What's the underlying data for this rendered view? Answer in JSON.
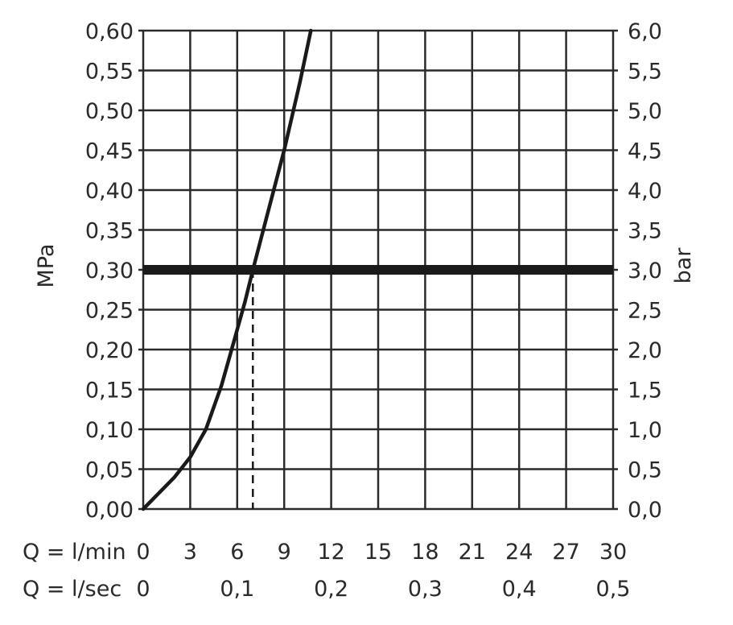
{
  "chart_data": {
    "type": "line",
    "y_left_label": "MPa",
    "y_right_label": "bar",
    "x_row1_label": "Q = l/min",
    "x_row2_label": "Q = l/sec",
    "x_row1_ticks": [
      "0",
      "3",
      "6",
      "9",
      "12",
      "15",
      "18",
      "21",
      "24",
      "27",
      "30"
    ],
    "x_row2_ticks": [
      {
        "q": 0,
        "label": "0"
      },
      {
        "q": 6,
        "label": "0,1"
      },
      {
        "q": 12,
        "label": "0,2"
      },
      {
        "q": 18,
        "label": "0,3"
      },
      {
        "q": 24,
        "label": "0,4"
      },
      {
        "q": 30,
        "label": "0,5"
      }
    ],
    "y_left_ticks": [
      "0,00",
      "0,05",
      "0,10",
      "0,15",
      "0,20",
      "0,25",
      "0,30",
      "0,35",
      "0,40",
      "0,45",
      "0,50",
      "0,55",
      "0,60"
    ],
    "y_right_ticks": [
      "0,0",
      "0,5",
      "1,0",
      "1,5",
      "2,0",
      "2,5",
      "3,0",
      "3,5",
      "4,0",
      "4,5",
      "5,0",
      "5,5",
      "6,0"
    ],
    "xlim": [
      0,
      30
    ],
    "ylim": [
      0,
      0.6
    ],
    "grid": true,
    "series": [
      {
        "x": [
          0,
          1,
          2,
          3,
          4,
          5,
          5.5,
          6,
          6.5,
          7,
          8,
          9,
          10,
          10.7
        ],
        "y": [
          0,
          0.02,
          0.04,
          0.065,
          0.1,
          0.155,
          0.19,
          0.225,
          0.26,
          0.3,
          0.375,
          0.45,
          0.535,
          0.6
        ]
      }
    ],
    "reference_line_y": 0.3,
    "reference_marker_x": 7
  }
}
